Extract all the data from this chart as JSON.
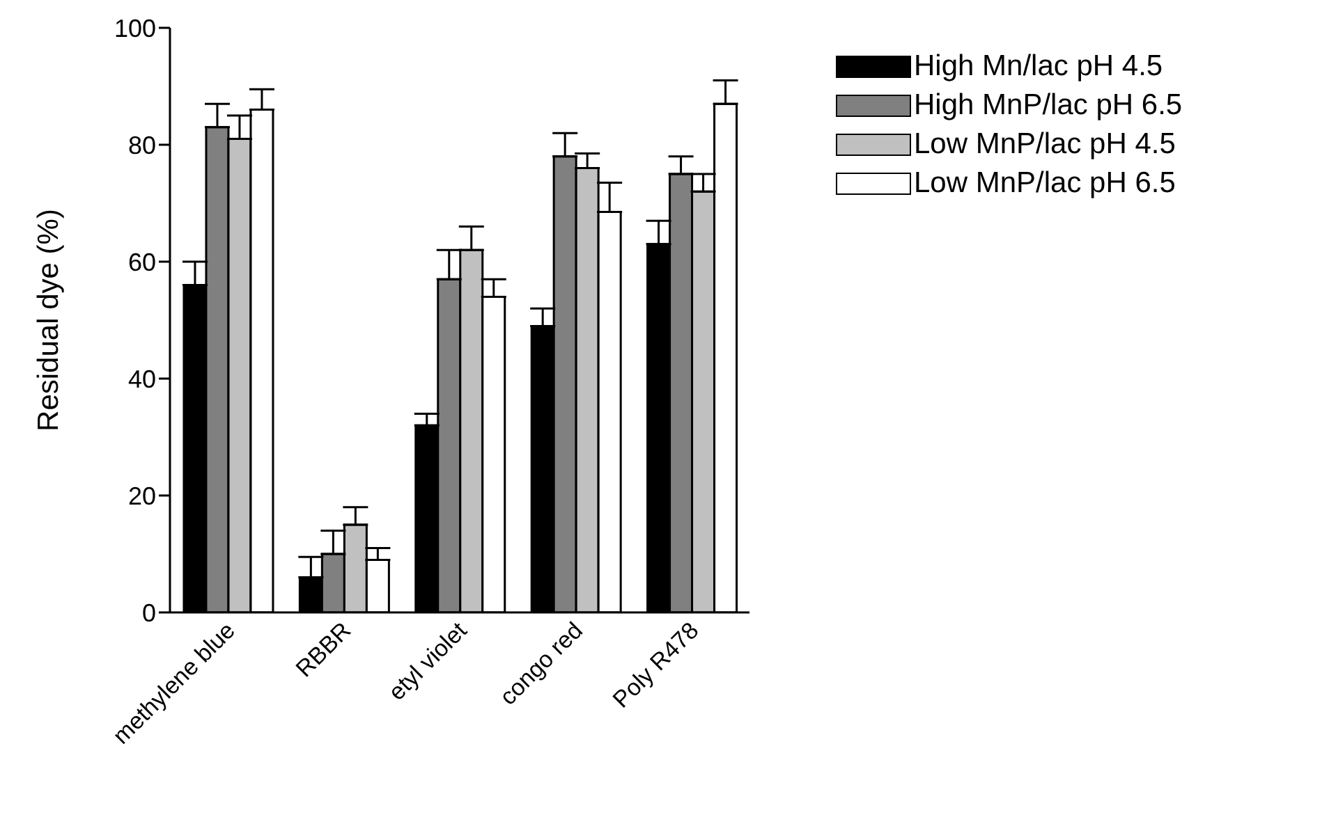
{
  "chart_data": {
    "type": "bar",
    "ylabel": "Residual dye (%)",
    "categories": [
      "methylene blue",
      "RBBR",
      "etyl violet",
      "congo red",
      "Poly R478"
    ],
    "series": [
      {
        "name": "High Mn/lac pH 4.5",
        "color": "#000000",
        "values": [
          56,
          6,
          32,
          49,
          63
        ],
        "errors": [
          4,
          3.5,
          2,
          3,
          4
        ]
      },
      {
        "name": "High MnP/lac pH 6.5",
        "color": "#808080",
        "values": [
          83,
          10,
          57,
          78,
          75
        ],
        "errors": [
          4,
          4,
          5,
          4,
          3
        ]
      },
      {
        "name": "Low MnP/lac pH 4.5",
        "color": "#c0c0c0",
        "values": [
          81,
          15,
          62,
          76,
          72
        ],
        "errors": [
          4,
          3,
          4,
          2.5,
          3
        ]
      },
      {
        "name": "Low MnP/lac pH 6.5",
        "color": "#ffffff",
        "values": [
          86,
          9,
          54,
          68.5,
          87
        ],
        "errors": [
          3.5,
          2,
          3,
          5,
          4
        ]
      }
    ],
    "ylim": [
      0,
      100
    ],
    "yticks": [
      0,
      20,
      40,
      60,
      80,
      100
    ],
    "grid": false,
    "legend": "top right"
  }
}
